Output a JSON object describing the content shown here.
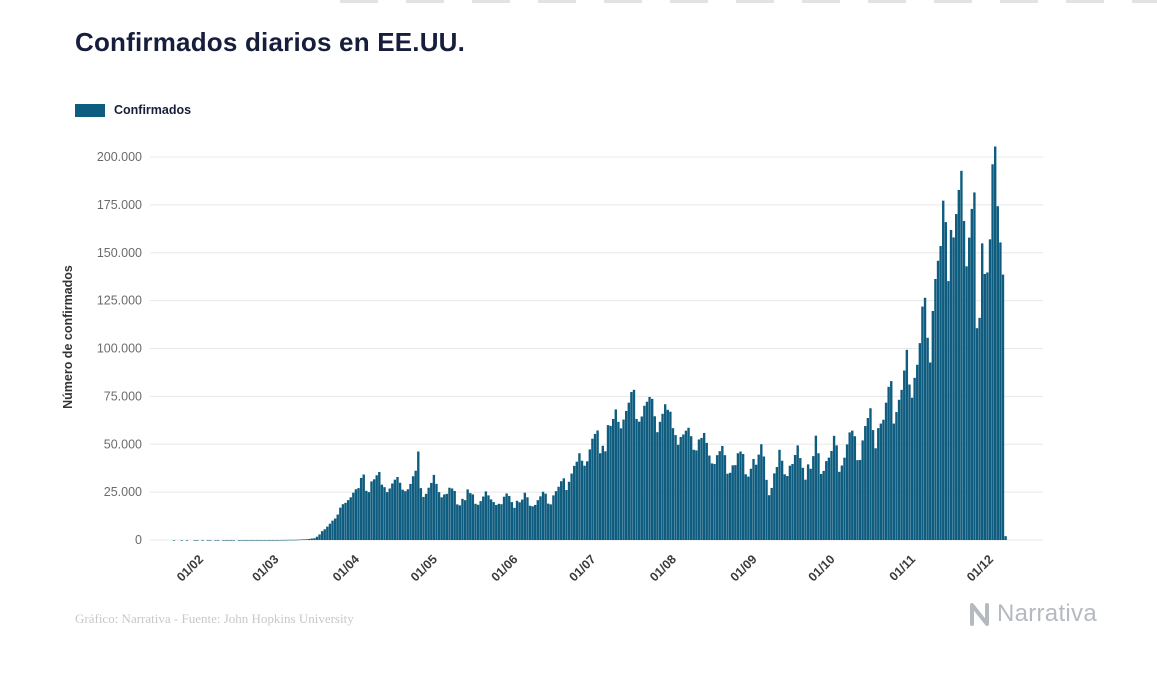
{
  "header": {
    "title": "Confirmados diarios en EE.UU."
  },
  "legend": {
    "label": "Confirmados"
  },
  "footer": {
    "credit": "Gráfico: Narrativa - Fuente: John Hopkins University",
    "logo_text": "Narrativa"
  },
  "colors": {
    "bar": "#0e5c7f",
    "title_text": "#171e3c",
    "grid": "#e8e8e8",
    "y_tick_text": "#6b6b6b",
    "x_tick_text": "#3b3b3b",
    "axis_label_text": "#333333",
    "footer_text": "#c8c8c8",
    "logo": "#b5bac1"
  },
  "chart_data": {
    "type": "bar",
    "title": "Confirmados diarios en EE.UU.",
    "xlabel": "",
    "ylabel": "Número de confirmados",
    "legend_entries": [
      "Confirmados"
    ],
    "legend_position": "top-left",
    "grid": "horizontal",
    "ylim": [
      0,
      200000
    ],
    "y_ticks": [
      {
        "value": 0,
        "label": "0"
      },
      {
        "value": 25000,
        "label": "25.000"
      },
      {
        "value": 50000,
        "label": "50.000"
      },
      {
        "value": 75000,
        "label": "75.000"
      },
      {
        "value": 100000,
        "label": "100.000"
      },
      {
        "value": 125000,
        "label": "125.000"
      },
      {
        "value": 150000,
        "label": "150.000"
      },
      {
        "value": 175000,
        "label": "175.000"
      },
      {
        "value": 200000,
        "label": "200.000"
      }
    ],
    "x_ticks": [
      {
        "date": "2020-02-01",
        "label": "01/02"
      },
      {
        "date": "2020-03-01",
        "label": "01/03"
      },
      {
        "date": "2020-04-01",
        "label": "01/04"
      },
      {
        "date": "2020-05-01",
        "label": "01/05"
      },
      {
        "date": "2020-06-01",
        "label": "01/06"
      },
      {
        "date": "2020-07-01",
        "label": "01/07"
      },
      {
        "date": "2020-08-01",
        "label": "01/08"
      },
      {
        "date": "2020-09-01",
        "label": "01/09"
      },
      {
        "date": "2020-10-01",
        "label": "01/10"
      },
      {
        "date": "2020-11-01",
        "label": "01/11"
      },
      {
        "date": "2020-12-01",
        "label": "01/12"
      }
    ],
    "start_date": "2020-01-20",
    "frequency": "daily",
    "series": [
      {
        "name": "Confirmados",
        "values": [
          0,
          0,
          1,
          0,
          0,
          2,
          0,
          1,
          0,
          0,
          3,
          2,
          0,
          2,
          0,
          1,
          3,
          0,
          2,
          1,
          0,
          4,
          2,
          3,
          1,
          5,
          0,
          2,
          6,
          3,
          2,
          4,
          5,
          3,
          6,
          8,
          5,
          7,
          6,
          9,
          8,
          12,
          18,
          25,
          34,
          62,
          105,
          120,
          95,
          130,
          210,
          290,
          350,
          420,
          530,
          780,
          900,
          1700,
          2900,
          4600,
          5600,
          7000,
          8500,
          10100,
          11200,
          13300,
          16900,
          18700,
          19400,
          20800,
          22300,
          24700,
          26500,
          27100,
          32400,
          34200,
          25700,
          25000,
          30600,
          31700,
          33800,
          35500,
          28900,
          27600,
          25000,
          26900,
          29500,
          31500,
          32900,
          29900,
          26300,
          25500,
          26500,
          29300,
          33300,
          36200,
          46200,
          27100,
          22500,
          24100,
          27300,
          29800,
          34000,
          29300,
          25000,
          22300,
          23800,
          24100,
          27300,
          26900,
          25600,
          18600,
          18100,
          21500,
          20800,
          26400,
          24500,
          23800,
          18900,
          18400,
          20300,
          22700,
          25400,
          23300,
          21200,
          19800,
          18300,
          18900,
          18700,
          22600,
          24300,
          23000,
          19800,
          16800,
          20500,
          19700,
          21100,
          24700,
          22300,
          17900,
          17600,
          18300,
          20800,
          22800,
          25200,
          24200,
          19000,
          18600,
          23300,
          25500,
          27800,
          30700,
          32200,
          26100,
          30400,
          34700,
          38700,
          40900,
          45300,
          41400,
          38800,
          41100,
          47300,
          52900,
          55400,
          57200,
          45300,
          49200,
          46300,
          60000,
          59600,
          63200,
          68200,
          61700,
          58300,
          62900,
          67400,
          71700,
          77300,
          78400,
          63200,
          61800,
          64500,
          70100,
          72200,
          74700,
          73700,
          64600,
          56300,
          61700,
          65900,
          70900,
          68000,
          67000,
          58400,
          54800,
          49700,
          53800,
          55100,
          57100,
          58600,
          54200,
          47100,
          46800,
          52500,
          53300,
          55900,
          50700,
          44100,
          40000,
          39700,
          44300,
          46400,
          49100,
          44300,
          34600,
          35100,
          39000,
          39100,
          45300,
          46200,
          44900,
          34300,
          33100,
          37200,
          42300,
          39300,
          44600,
          50000,
          43600,
          31400,
          23400,
          27200,
          34800,
          38100,
          47100,
          41400,
          34300,
          33400,
          38800,
          39700,
          44400,
          49400,
          42800,
          37700,
          31500,
          39500,
          37200,
          43800,
          54500,
          45300,
          34500,
          36100,
          41200,
          43000,
          46500,
          54400,
          49400,
          35600,
          38900,
          43000,
          49900,
          56200,
          57100,
          54200,
          41700,
          41800,
          52000,
          59500,
          63700,
          68800,
          57400,
          47900,
          58400,
          60800,
          62800,
          71700,
          80000,
          83000,
          60800,
          66800,
          73200,
          78400,
          88500,
          99300,
          81200,
          74300,
          84700,
          91500,
          102800,
          121900,
          126500,
          105600,
          92700,
          119600,
          136300,
          145800,
          153500,
          177200,
          166000,
          135200,
          161900,
          158000,
          170200,
          182800,
          192800,
          166600,
          142900,
          157900,
          172900,
          181500,
          110600,
          116000,
          154900,
          138900,
          139700,
          157000,
          196200,
          205500,
          174300,
          155400,
          138600,
          2000
        ]
      }
    ]
  }
}
